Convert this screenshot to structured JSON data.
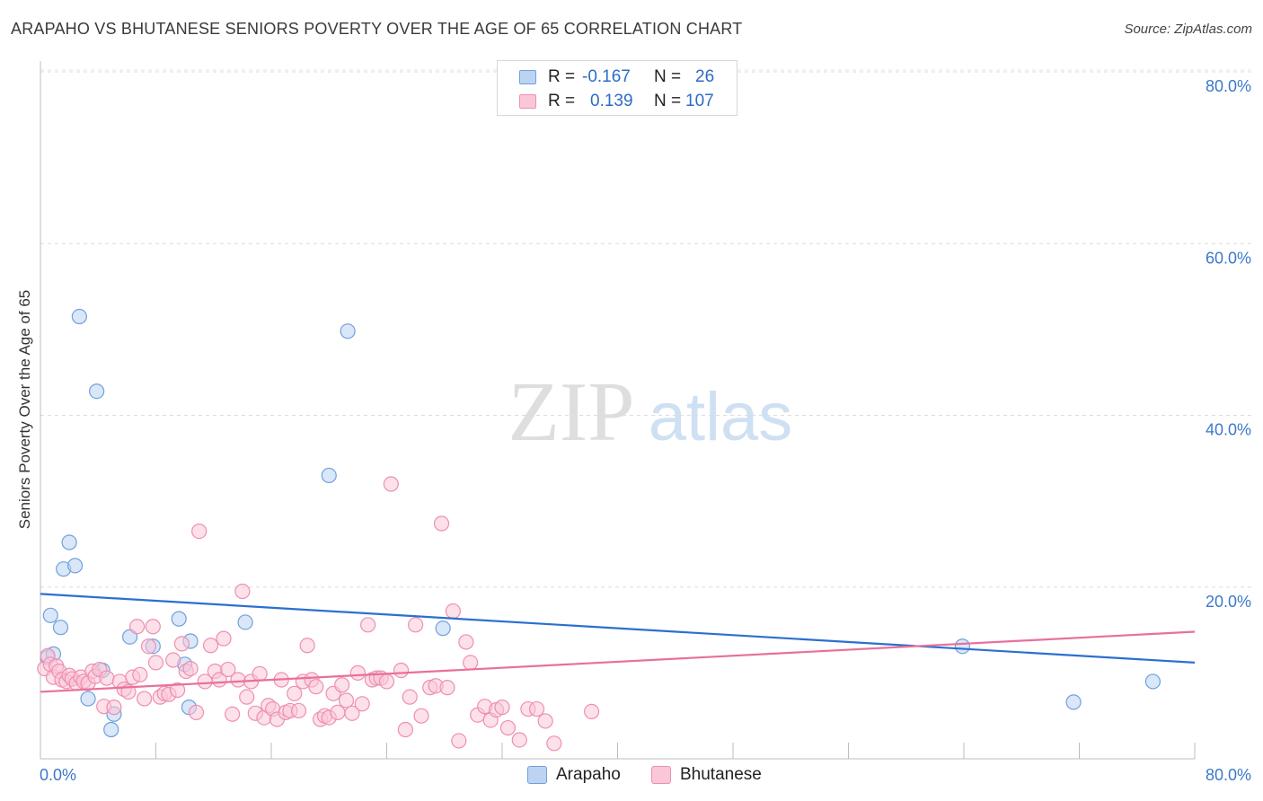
{
  "chart_data": {
    "type": "scatter",
    "title": "ARAPAHO VS BHUTANESE SENIORS POVERTY OVER THE AGE OF 65 CORRELATION CHART",
    "source": "Source: ZipAtlas.com",
    "ylabel": "Seniors Poverty Over the Age of 65",
    "xlabel": "",
    "xlim": [
      0,
      80
    ],
    "ylim": [
      0,
      80
    ],
    "x_tick_labels": [
      "0.0%",
      "80.0%"
    ],
    "y_tick_labels": [
      "20.0%",
      "40.0%",
      "60.0%",
      "80.0%"
    ],
    "y_ticks": [
      20,
      40,
      60,
      80
    ],
    "grid": true,
    "watermark": {
      "part1": "ZIP",
      "part2": "atlas"
    },
    "stats": [
      {
        "r_label": "R =",
        "r_value": "-0.167",
        "n_label": "N =",
        "n_value": "26"
      },
      {
        "r_label": "R =",
        "r_value": "0.139",
        "n_label": "N =",
        "n_value": "107"
      }
    ],
    "series": [
      {
        "name": "Arapaho",
        "color": "#6fa0dd",
        "fill": "#bcd4f2",
        "line_color": "#2c6fd0",
        "trend": [
          [
            0,
            19.2
          ],
          [
            80,
            11.2
          ]
        ],
        "points": [
          [
            0.5,
            11.8
          ],
          [
            0.7,
            16.7
          ],
          [
            0.9,
            12.2
          ],
          [
            1.4,
            15.3
          ],
          [
            1.6,
            22.1
          ],
          [
            2.0,
            25.2
          ],
          [
            2.4,
            22.5
          ],
          [
            2.7,
            51.5
          ],
          [
            3.3,
            7.0
          ],
          [
            3.9,
            42.8
          ],
          [
            4.3,
            10.3
          ],
          [
            4.9,
            3.4
          ],
          [
            5.1,
            5.2
          ],
          [
            6.2,
            14.2
          ],
          [
            7.8,
            13.1
          ],
          [
            9.6,
            16.3
          ],
          [
            10.0,
            11.0
          ],
          [
            10.3,
            6.0
          ],
          [
            10.4,
            13.7
          ],
          [
            14.2,
            15.9
          ],
          [
            20.0,
            33.0
          ],
          [
            21.3,
            49.8
          ],
          [
            27.9,
            15.2
          ],
          [
            63.9,
            13.1
          ],
          [
            71.6,
            6.6
          ],
          [
            77.1,
            9.0
          ]
        ]
      },
      {
        "name": "Bhutanese",
        "color": "#ee8fb0",
        "fill": "#f9c7d8",
        "line_color": "#e8709a",
        "trend": [
          [
            0,
            7.8
          ],
          [
            80,
            14.8
          ]
        ],
        "points": [
          [
            0.3,
            10.5
          ],
          [
            0.5,
            12.0
          ],
          [
            0.7,
            11.0
          ],
          [
            0.9,
            9.5
          ],
          [
            1.1,
            10.8
          ],
          [
            1.3,
            10.2
          ],
          [
            1.5,
            9.2
          ],
          [
            1.8,
            9.0
          ],
          [
            2.0,
            9.7
          ],
          [
            2.2,
            9.3
          ],
          [
            2.5,
            8.8
          ],
          [
            2.8,
            9.5
          ],
          [
            3.0,
            9.0
          ],
          [
            3.3,
            8.8
          ],
          [
            3.6,
            10.2
          ],
          [
            3.8,
            9.6
          ],
          [
            4.1,
            10.4
          ],
          [
            4.4,
            6.1
          ],
          [
            4.6,
            9.4
          ],
          [
            5.1,
            6.0
          ],
          [
            5.5,
            9.0
          ],
          [
            5.8,
            8.1
          ],
          [
            6.1,
            7.8
          ],
          [
            6.4,
            9.5
          ],
          [
            6.7,
            15.4
          ],
          [
            6.9,
            9.8
          ],
          [
            7.2,
            7.0
          ],
          [
            7.5,
            13.1
          ],
          [
            7.8,
            15.4
          ],
          [
            8.0,
            11.2
          ],
          [
            8.3,
            7.2
          ],
          [
            8.6,
            7.6
          ],
          [
            8.9,
            7.5
          ],
          [
            9.2,
            11.5
          ],
          [
            9.5,
            8.0
          ],
          [
            9.8,
            13.4
          ],
          [
            10.1,
            10.2
          ],
          [
            10.4,
            10.5
          ],
          [
            10.8,
            5.4
          ],
          [
            11.0,
            26.5
          ],
          [
            11.4,
            9.0
          ],
          [
            11.8,
            13.2
          ],
          [
            12.1,
            10.2
          ],
          [
            12.4,
            9.2
          ],
          [
            12.7,
            14.0
          ],
          [
            13.0,
            10.4
          ],
          [
            13.3,
            5.2
          ],
          [
            13.7,
            9.2
          ],
          [
            14.0,
            19.5
          ],
          [
            14.3,
            7.2
          ],
          [
            14.6,
            9.0
          ],
          [
            14.9,
            5.3
          ],
          [
            15.2,
            9.9
          ],
          [
            15.5,
            4.8
          ],
          [
            15.8,
            6.2
          ],
          [
            16.1,
            5.8
          ],
          [
            16.4,
            4.6
          ],
          [
            16.7,
            9.2
          ],
          [
            17.0,
            5.4
          ],
          [
            17.3,
            5.6
          ],
          [
            17.6,
            7.6
          ],
          [
            17.9,
            5.6
          ],
          [
            18.2,
            9.0
          ],
          [
            18.5,
            13.2
          ],
          [
            18.8,
            9.2
          ],
          [
            19.1,
            8.4
          ],
          [
            19.4,
            4.6
          ],
          [
            19.7,
            5.0
          ],
          [
            20.0,
            4.8
          ],
          [
            20.3,
            7.6
          ],
          [
            20.6,
            5.4
          ],
          [
            20.9,
            8.6
          ],
          [
            21.2,
            6.8
          ],
          [
            21.6,
            5.3
          ],
          [
            22.0,
            10.0
          ],
          [
            22.3,
            6.4
          ],
          [
            22.7,
            15.6
          ],
          [
            23.0,
            9.2
          ],
          [
            23.3,
            9.4
          ],
          [
            23.6,
            9.4
          ],
          [
            24.0,
            9.0
          ],
          [
            24.3,
            32.0
          ],
          [
            25.0,
            10.3
          ],
          [
            25.3,
            3.4
          ],
          [
            25.6,
            7.2
          ],
          [
            26.0,
            15.6
          ],
          [
            26.4,
            5.0
          ],
          [
            27.0,
            8.3
          ],
          [
            27.4,
            8.5
          ],
          [
            27.8,
            27.4
          ],
          [
            28.2,
            8.3
          ],
          [
            28.6,
            17.2
          ],
          [
            29.0,
            2.1
          ],
          [
            29.5,
            13.6
          ],
          [
            29.8,
            11.2
          ],
          [
            30.3,
            5.1
          ],
          [
            30.8,
            6.1
          ],
          [
            31.2,
            4.5
          ],
          [
            31.6,
            5.7
          ],
          [
            32.0,
            6.0
          ],
          [
            32.4,
            3.6
          ],
          [
            33.2,
            2.2
          ],
          [
            33.8,
            5.8
          ],
          [
            34.4,
            5.8
          ],
          [
            35.0,
            4.4
          ],
          [
            35.6,
            1.8
          ],
          [
            38.2,
            5.5
          ]
        ]
      }
    ]
  }
}
